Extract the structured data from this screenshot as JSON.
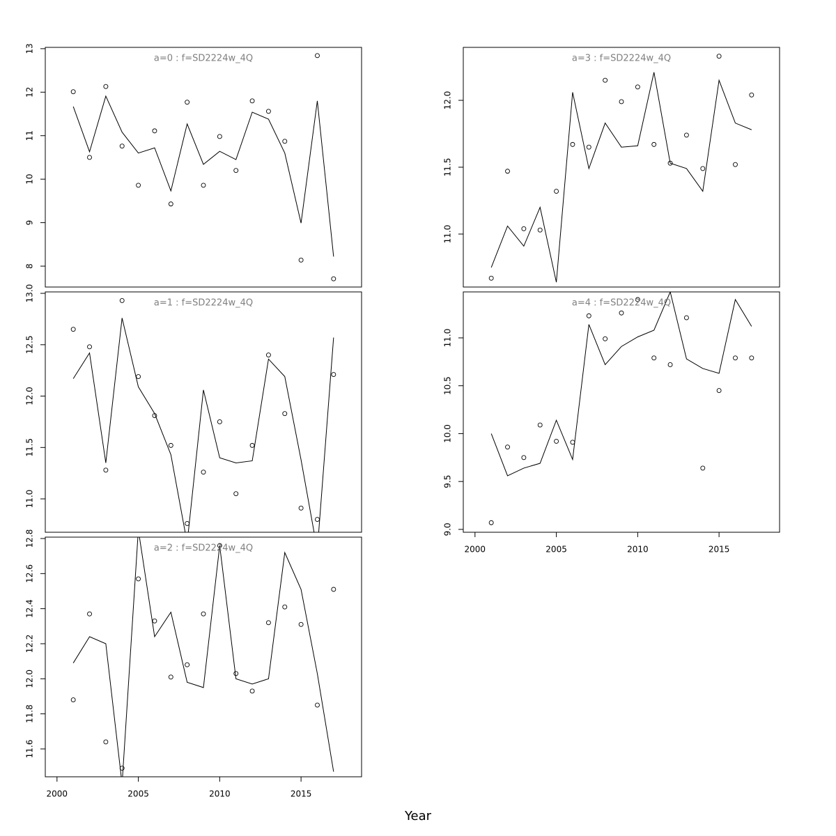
{
  "xlabel": "Year",
  "chart_data": [
    {
      "type": "line",
      "title": "a=0 : f=SD2224w_4Q",
      "x": [
        2001,
        2002,
        2003,
        2004,
        2005,
        2006,
        2007,
        2008,
        2009,
        2010,
        2011,
        2012,
        2013,
        2014,
        2015,
        2016,
        2017
      ],
      "series": [
        {
          "style": "points",
          "color": "#000000",
          "values": [
            12.01,
            10.5,
            12.13,
            10.76,
            9.86,
            11.11,
            9.43,
            11.77,
            9.86,
            10.98,
            10.2,
            11.8,
            11.56,
            10.87,
            8.14,
            12.84,
            7.71
          ]
        },
        {
          "style": "line",
          "color": "#000000",
          "values": [
            11.67,
            10.63,
            11.91,
            11.08,
            10.6,
            10.72,
            9.73,
            11.27,
            10.34,
            10.64,
            10.45,
            11.54,
            11.38,
            10.6,
            8.99,
            11.8,
            8.22
          ]
        }
      ],
      "xlim": [
        1999.28,
        2018.72
      ],
      "ylim": [
        7.52,
        13.03
      ],
      "yticks": [
        8,
        9,
        10,
        11,
        12,
        13
      ]
    },
    {
      "type": "line",
      "title": "a=1 : f=SD2224w_4Q",
      "x": [
        2001,
        2002,
        2003,
        2004,
        2005,
        2006,
        2007,
        2008,
        2009,
        2010,
        2011,
        2012,
        2013,
        2014,
        2015,
        2016,
        2017
      ],
      "series": [
        {
          "style": "points",
          "color": "#000000",
          "values": [
            12.65,
            12.48,
            11.28,
            12.93,
            12.19,
            11.81,
            11.52,
            10.76,
            11.26,
            11.75,
            11.05,
            11.52,
            12.4,
            11.83,
            10.91,
            10.8,
            12.21
          ]
        },
        {
          "style": "line",
          "color": "#000000",
          "values": [
            12.17,
            12.42,
            11.35,
            12.76,
            12.09,
            11.83,
            11.43,
            10.57,
            12.06,
            11.4,
            11.35,
            11.37,
            12.36,
            12.19,
            11.38,
            10.5,
            12.57
          ]
        }
      ],
      "xlim": [
        1999.28,
        2018.72
      ],
      "ylim": [
        10.675,
        13.014
      ],
      "yticks": [
        {
          "value": 11,
          "label": "11.0"
        },
        11.5,
        {
          "value": 12,
          "label": "12.0"
        },
        12.5,
        {
          "value": 13,
          "label": "13.0"
        }
      ]
    },
    {
      "type": "line",
      "title": "a=2 : f=SD2224w_4Q",
      "x": [
        2001,
        2002,
        2003,
        2004,
        2005,
        2006,
        2007,
        2008,
        2009,
        2010,
        2011,
        2012,
        2013,
        2014,
        2015,
        2016,
        2017
      ],
      "series": [
        {
          "style": "points",
          "color": "#000000",
          "values": [
            11.88,
            12.37,
            11.64,
            11.49,
            12.57,
            12.33,
            12.01,
            12.08,
            12.37,
            12.76,
            12.03,
            11.93,
            12.32,
            12.41,
            12.31,
            11.85,
            12.51
          ]
        },
        {
          "style": "line",
          "color": "#000000",
          "values": [
            12.09,
            12.24,
            12.2,
            11.4,
            12.85,
            12.24,
            12.38,
            11.98,
            11.95,
            12.76,
            12.0,
            11.97,
            12.0,
            12.72,
            12.51,
            12.03,
            11.47
          ]
        }
      ],
      "xlim": [
        1999.28,
        2018.72
      ],
      "ylim": [
        11.441,
        12.808
      ],
      "yticks": [
        11.6,
        11.8,
        {
          "value": 12,
          "label": "12.0"
        },
        12.2,
        12.4,
        12.6,
        12.8
      ],
      "xticks": [
        2000,
        2005,
        2010,
        2015
      ]
    },
    {
      "type": "line",
      "title": "a=3 : f=SD2224w_4Q",
      "x": [
        2001,
        2002,
        2003,
        2004,
        2005,
        2006,
        2007,
        2008,
        2009,
        2010,
        2011,
        2012,
        2013,
        2014,
        2015,
        2016,
        2017
      ],
      "series": [
        {
          "style": "points",
          "color": "#000000",
          "values": [
            10.67,
            11.47,
            11.04,
            11.03,
            11.32,
            11.67,
            11.65,
            12.15,
            11.99,
            12.1,
            11.67,
            11.53,
            11.74,
            11.49,
            12.33,
            11.52,
            12.04
          ]
        },
        {
          "style": "line",
          "color": "#000000",
          "values": [
            10.75,
            11.06,
            10.91,
            11.2,
            10.64,
            12.06,
            11.49,
            11.83,
            11.65,
            11.66,
            12.21,
            11.53,
            11.49,
            11.32,
            12.15,
            11.83,
            11.78
          ]
        }
      ],
      "xlim": [
        1999.28,
        2018.72
      ],
      "ylim": [
        10.604,
        12.396
      ],
      "yticks": [
        {
          "value": 11,
          "label": "11.0"
        },
        11.5,
        {
          "value": 12,
          "label": "12.0"
        }
      ]
    },
    {
      "type": "line",
      "title": "a=4 : f=SD2224w_4Q",
      "x": [
        2001,
        2002,
        2003,
        2004,
        2005,
        2006,
        2007,
        2008,
        2009,
        2010,
        2011,
        2012,
        2013,
        2014,
        2015,
        2016,
        2017
      ],
      "series": [
        {
          "style": "points",
          "color": "#000000",
          "values": [
            9.07,
            9.86,
            9.75,
            10.09,
            9.92,
            9.91,
            11.23,
            10.99,
            11.26,
            11.4,
            10.79,
            10.72,
            11.21,
            9.64,
            10.45,
            10.79,
            10.79
          ]
        },
        {
          "style": "line",
          "color": "#000000",
          "values": [
            10.0,
            9.56,
            9.64,
            9.69,
            10.14,
            9.73,
            11.14,
            10.72,
            10.91,
            11.01,
            11.08,
            11.48,
            10.78,
            10.68,
            10.63,
            11.4,
            11.12
          ]
        }
      ],
      "xlim": [
        1999.28,
        2018.72
      ],
      "ylim": [
        8.97,
        11.48
      ],
      "yticks": [
        {
          "value": 9,
          "label": "9.0"
        },
        9.5,
        {
          "value": 10,
          "label": "10.0"
        },
        10.5,
        {
          "value": 11,
          "label": "11.0"
        }
      ],
      "xticks": [
        2000,
        2005,
        2010,
        2015
      ]
    }
  ]
}
